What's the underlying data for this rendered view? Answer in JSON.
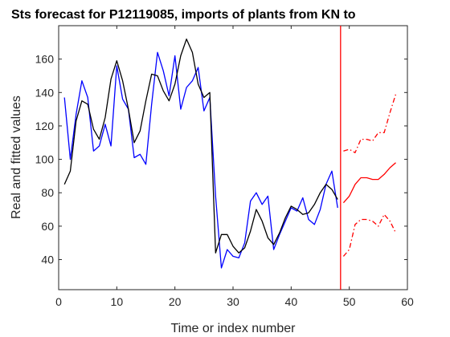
{
  "chart_data": {
    "type": "line",
    "title": "Sts forecast for P12119085, imports of plants from KN to",
    "xlabel": "Time or index number",
    "ylabel": "Real and fitted values",
    "xlim": [
      0,
      60
    ],
    "ylim": [
      22,
      180
    ],
    "xticks": [
      0,
      10,
      20,
      30,
      40,
      50,
      60
    ],
    "yticks": [
      40,
      60,
      80,
      100,
      120,
      140,
      160
    ],
    "grid": false,
    "legend": "none",
    "vline_x": 48.5,
    "colors": {
      "real": "#0000ff",
      "fitted": "#000000",
      "forecast": "#ff0000",
      "vline": "#ff0000",
      "axis": "#262626"
    },
    "series": [
      {
        "x": [
          1,
          2,
          3,
          4,
          5,
          6,
          7,
          8,
          9,
          10,
          11,
          12,
          13,
          14,
          15,
          16,
          17,
          18,
          19,
          20,
          21,
          22,
          23,
          24,
          25,
          26,
          27,
          28,
          29,
          30,
          31,
          32,
          33,
          34,
          35,
          36,
          37,
          38,
          39,
          40,
          41,
          42,
          43,
          44,
          45,
          46,
          47,
          48
        ],
        "values": [
          137,
          100,
          127,
          147,
          137,
          105,
          108,
          121,
          108,
          156,
          136,
          130,
          101,
          103,
          97,
          133,
          164,
          153,
          138,
          162,
          130,
          143,
          147,
          155,
          129,
          137,
          78,
          35,
          46,
          42,
          41,
          50,
          75,
          80,
          73,
          78,
          46,
          55,
          63,
          71,
          69,
          77,
          64,
          61,
          70,
          85,
          93,
          71
        ],
        "style": "solid"
      },
      {
        "x": [
          1,
          2,
          3,
          4,
          5,
          6,
          7,
          8,
          9,
          10,
          11,
          12,
          13,
          14,
          15,
          16,
          17,
          18,
          19,
          20,
          21,
          22,
          23,
          24,
          25,
          26,
          27,
          28,
          29,
          30,
          31,
          32,
          33,
          34,
          35,
          36,
          37,
          38,
          39,
          40,
          41,
          42,
          43,
          44,
          45,
          46,
          47,
          48
        ],
        "values": [
          85,
          93,
          123,
          135,
          133,
          118,
          112,
          125,
          148,
          159,
          147,
          130,
          110,
          117,
          135,
          151,
          150,
          141,
          135,
          145,
          162,
          172,
          164,
          145,
          137,
          140,
          44,
          55,
          55,
          48,
          44,
          47,
          57,
          70,
          63,
          53,
          49,
          56,
          65,
          72,
          70,
          67,
          68,
          73,
          80,
          85,
          82,
          76
        ],
        "style": "solid"
      },
      {
        "x": [
          49,
          50,
          51,
          52,
          53,
          54,
          55,
          56,
          57,
          58
        ],
        "values": [
          74,
          78,
          85,
          89,
          89,
          88,
          88,
          91,
          95,
          98
        ],
        "style": "solid"
      },
      {
        "x": [
          49,
          50,
          51,
          52,
          53,
          54,
          55,
          56,
          57,
          58
        ],
        "values": [
          105,
          106,
          104,
          112,
          112,
          111,
          116,
          116,
          128,
          139
        ],
        "style": "dashdot"
      },
      {
        "x": [
          49,
          50,
          51,
          52,
          53,
          54,
          55,
          56,
          57,
          58
        ],
        "values": [
          42,
          46,
          61,
          64,
          64,
          63,
          60,
          67,
          63,
          56
        ],
        "style": "dashdot"
      }
    ]
  }
}
